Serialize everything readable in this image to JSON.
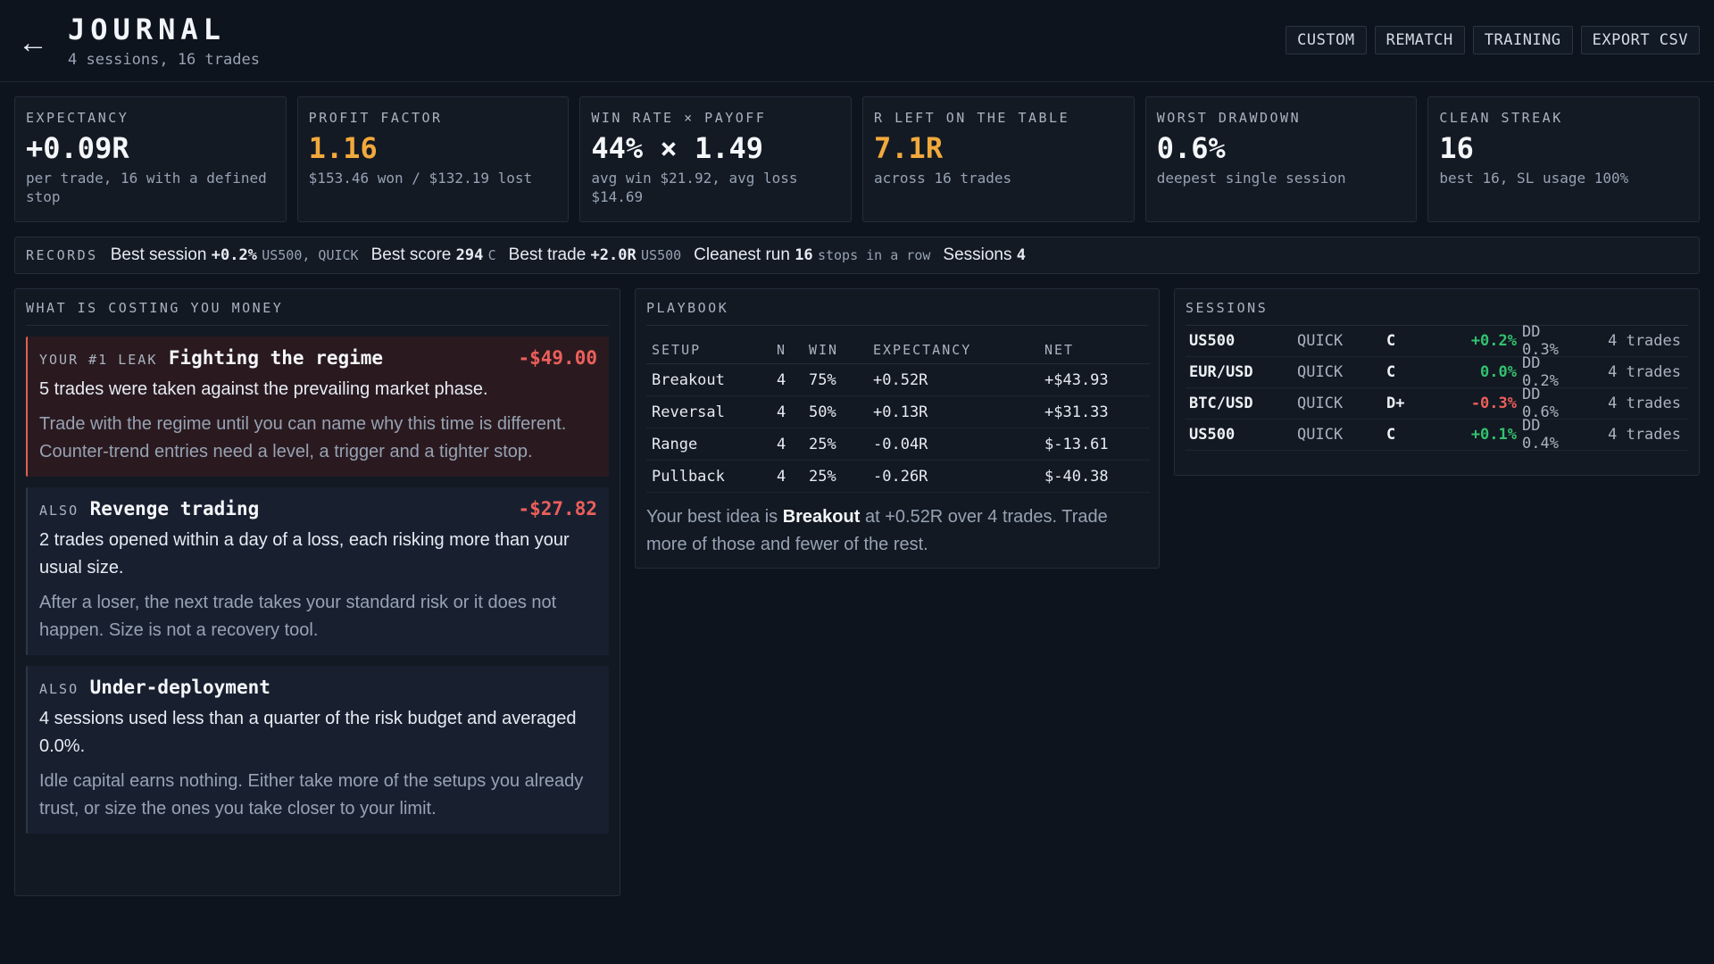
{
  "header": {
    "back_icon": "arrow-left-icon",
    "title": "JOURNAL",
    "subtitle": "4 sessions, 16 trades",
    "buttons": [
      "CUSTOM",
      "REMATCH",
      "TRAINING",
      "EXPORT CSV"
    ]
  },
  "stats": [
    {
      "label": "EXPECTANCY",
      "value": "+0.09R",
      "note": "per trade, 16 with a defined stop",
      "accent": "#f4f6f9"
    },
    {
      "label": "PROFIT FACTOR",
      "value": "1.16",
      "note": "$153.46 won / $132.19 lost",
      "accent": "#f2a93b"
    },
    {
      "label": "WIN RATE × PAYOFF",
      "value": "44% × 1.49",
      "note": "avg win $21.92, avg loss $14.69",
      "accent": "#f4f6f9"
    },
    {
      "label": "R LEFT ON THE TABLE",
      "value": "7.1R",
      "note": "across 16 trades",
      "accent": "#f2a93b"
    },
    {
      "label": "WORST DRAWDOWN",
      "value": "0.6%",
      "note": "deepest single session",
      "accent": "#f4f6f9"
    },
    {
      "label": "CLEAN STREAK",
      "value": "16",
      "note": "best 16, SL usage 100%",
      "accent": "#f4f6f9"
    }
  ],
  "records": {
    "label": "RECORDS",
    "best_session": {
      "label": "Best session",
      "value": "+0.2%",
      "meta": "US500, QUICK"
    },
    "best_score": {
      "label": "Best score",
      "value": "294",
      "meta": "C"
    },
    "best_trade": {
      "label": "Best trade",
      "value": "+2.0R",
      "meta": "US500"
    },
    "cleanest_run": {
      "label": "Cleanest run",
      "value": "16",
      "meta": "stops in a row"
    },
    "sessions": {
      "label": "Sessions",
      "value": "4"
    }
  },
  "costing": {
    "title": "WHAT IS COSTING YOU MONEY",
    "items": [
      {
        "kicker": "YOUR #1 LEAK",
        "title": "Fighting the regime",
        "amount": "-$49.00",
        "desc": "5 trades were taken against the prevailing market phase.",
        "advice": "Trade with the regime until you can name why this time is different. Counter-trend entries need a level, a trigger and a tighter stop."
      },
      {
        "kicker": "ALSO",
        "title": "Revenge trading",
        "amount": "-$27.82",
        "desc": "2 trades opened within a day of a loss, each risking more than your usual size.",
        "advice": "After a loser, the next trade takes your standard risk or it does not happen. Size is not a recovery tool."
      },
      {
        "kicker": "ALSO",
        "title": "Under-deployment",
        "amount": "",
        "desc": "4 sessions used less than a quarter of the risk budget and averaged 0.0%.",
        "advice": "Idle capital earns nothing. Either take more of the setups you already trust, or size the ones you take closer to your limit."
      }
    ]
  },
  "playbook": {
    "title": "PLAYBOOK",
    "columns": [
      "SETUP",
      "N",
      "WIN",
      "EXPECTANCY",
      "NET"
    ],
    "rows": [
      {
        "setup": "Breakout",
        "n": "4",
        "win": "75%",
        "expectancy": "+0.52R",
        "net": "+$43.93",
        "positive": true
      },
      {
        "setup": "Reversal",
        "n": "4",
        "win": "50%",
        "expectancy": "+0.13R",
        "net": "+$31.33",
        "positive": true
      },
      {
        "setup": "Range",
        "n": "4",
        "win": "25%",
        "expectancy": "-0.04R",
        "net": "$-13.61",
        "positive": false
      },
      {
        "setup": "Pullback",
        "n": "4",
        "win": "25%",
        "expectancy": "-0.26R",
        "net": "$-40.38",
        "positive": false
      }
    ],
    "summary_prefix": "Your best idea is",
    "summary_setup": "Breakout",
    "summary_suffix": "at +0.52R over 4 trades. Trade more of those and fewer of the rest."
  },
  "sessions": {
    "title": "SESSIONS",
    "rows": [
      {
        "symbol": "US500",
        "mode": "QUICK",
        "grade": "C",
        "pnl": "+0.2%",
        "dd": "DD 0.3%",
        "trades": "4 trades",
        "positive": true
      },
      {
        "symbol": "EUR/USD",
        "mode": "QUICK",
        "grade": "C",
        "pnl": "0.0%",
        "dd": "DD 0.2%",
        "trades": "4 trades",
        "positive": true
      },
      {
        "symbol": "BTC/USD",
        "mode": "QUICK",
        "grade": "D+",
        "pnl": "-0.3%",
        "dd": "DD 0.6%",
        "trades": "4 trades",
        "positive": false
      },
      {
        "symbol": "US500",
        "mode": "QUICK",
        "grade": "C",
        "pnl": "+0.1%",
        "dd": "DD 0.4%",
        "trades": "4 trades",
        "positive": true
      }
    ]
  },
  "colors": {
    "background": "#0e141d",
    "amber": "#f2a93b",
    "positive": "#33c26e",
    "negative": "#ee5f5b",
    "leak_accent": "#e0604f"
  }
}
